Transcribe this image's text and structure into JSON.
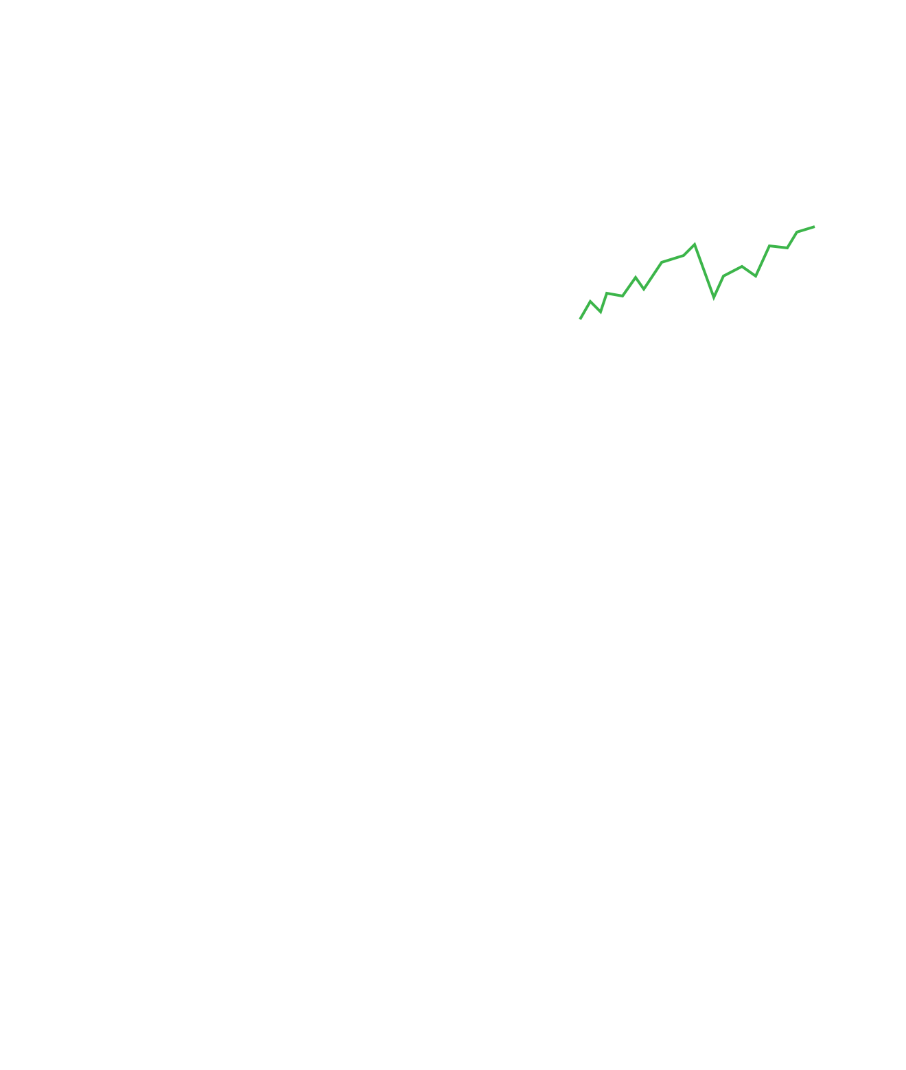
{
  "chart_data": {
    "type": "line",
    "x": [
      0,
      15,
      30,
      39,
      62,
      81,
      93,
      119,
      151,
      167,
      195,
      209,
      236,
      256,
      276,
      302,
      316,
      342
    ],
    "values": [
      0,
      26,
      11,
      38,
      34,
      61,
      44,
      83,
      93,
      109,
      32,
      63,
      77,
      63,
      107,
      104,
      127,
      135
    ],
    "color": "#3cb54a"
  }
}
